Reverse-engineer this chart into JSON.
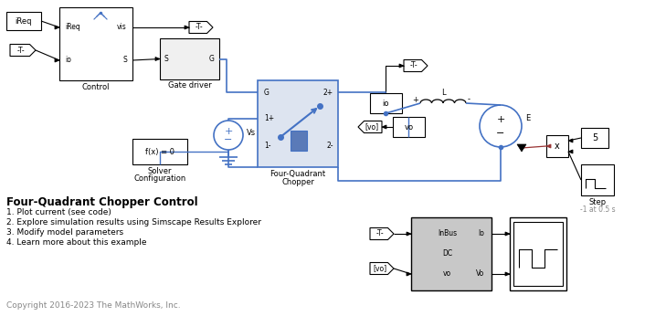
{
  "blue": "#4472C4",
  "black": "#000000",
  "gray": "#888888",
  "brown": "#993333",
  "light_blue_fill": "#dde4f0",
  "dark_fill": "#5a7ab8",
  "title": "Four-Quadrant Chopper Control",
  "items": [
    "1. Plot current (see code)",
    "2. Explore simulation results using Simscape Results Explorer",
    "3. Modify model parameters",
    "4. Learn more about this example"
  ],
  "copyright": "Copyright 2016-2023 The MathWorks, Inc."
}
